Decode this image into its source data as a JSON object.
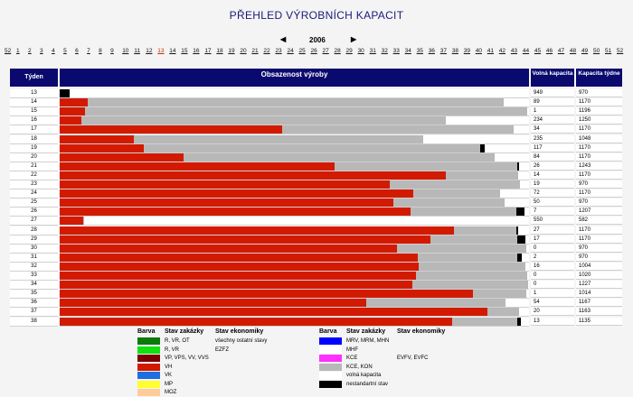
{
  "title": "PŘEHLED VÝROBNÍCH KAPACIT",
  "year_nav": {
    "year": "2006",
    "prev": "◀",
    "next": "▶"
  },
  "week_links": [
    "52",
    "1",
    "2",
    "3",
    "4",
    "5",
    "6",
    "7",
    "8",
    "9",
    "10",
    "11",
    "12",
    "13",
    "14",
    "15",
    "16",
    "17",
    "18",
    "19",
    "20",
    "21",
    "22",
    "23",
    "24",
    "25",
    "26",
    "27",
    "28",
    "29",
    "30",
    "31",
    "32",
    "33",
    "34",
    "35",
    "36",
    "37",
    "38",
    "39",
    "40",
    "41",
    "42",
    "43",
    "44",
    "45",
    "46",
    "47",
    "48",
    "49",
    "50",
    "51",
    "52"
  ],
  "current_week": "13",
  "headers": {
    "week": "Týden",
    "occupancy": "Obsazenost výroby",
    "free": "Volná kapacita",
    "capacity": "Kapacita týdne"
  },
  "colors": {
    "red": "#d21a00",
    "grey": "#b8b8b8",
    "black": "#000000",
    "header": "#0a0a6e"
  },
  "rows": [
    {
      "week": "13",
      "free": "949",
      "cap": "970",
      "red": 0,
      "grey": 0,
      "black": 2.2
    },
    {
      "week": "14",
      "free": "89",
      "cap": "1170",
      "red": 5.9,
      "grey": 88.7,
      "black": 0
    },
    {
      "week": "15",
      "free": "1",
      "cap": "1196",
      "red": 5.3,
      "grey": 94.3,
      "black": 0
    },
    {
      "week": "16",
      "free": "234",
      "cap": "1250",
      "red": 4.6,
      "grey": 77.6,
      "black": 0
    },
    {
      "week": "17",
      "free": "34",
      "cap": "1170",
      "red": 47.4,
      "grey": 49.4,
      "black": 0
    },
    {
      "week": "18",
      "free": "235",
      "cap": "1048",
      "red": 15.8,
      "grey": 61.7,
      "black": 0
    },
    {
      "week": "19",
      "free": "117",
      "cap": "1170",
      "red": 17.9,
      "grey": 71.7,
      "black": 0.9
    },
    {
      "week": "20",
      "free": "84",
      "cap": "1170",
      "red": 26.4,
      "grey": 66.2,
      "black": 0
    },
    {
      "week": "21",
      "free": "26",
      "cap": "1243",
      "red": 58.6,
      "grey": 38.9,
      "black": 0.3
    },
    {
      "week": "22",
      "free": "14",
      "cap": "1170",
      "red": 82.3,
      "grey": 15.4,
      "black": 0
    },
    {
      "week": "23",
      "free": "19",
      "cap": "970",
      "red": 70.4,
      "grey": 27.6,
      "black": 0
    },
    {
      "week": "24",
      "free": "72",
      "cap": "1170",
      "red": 75.3,
      "grey": 18.5,
      "black": 0
    },
    {
      "week": "25",
      "free": "50",
      "cap": "970",
      "red": 71.1,
      "grey": 23.7,
      "black": 0
    },
    {
      "week": "26",
      "free": "7",
      "cap": "1207",
      "red": 74.7,
      "grey": 22.6,
      "black": 1.7
    },
    {
      "week": "27",
      "free": "550",
      "cap": "582",
      "red": 5.0,
      "grey": 0.3,
      "black": 0
    },
    {
      "week": "28",
      "free": "27",
      "cap": "1170",
      "red": 84.0,
      "grey": 13.3,
      "black": 0.3
    },
    {
      "week": "29",
      "free": "17",
      "cap": "1170",
      "red": 79.0,
      "grey": 18.5,
      "black": 1.7
    },
    {
      "week": "30",
      "free": "0",
      "cap": "970",
      "red": 71.9,
      "grey": 27.6,
      "black": 0
    },
    {
      "week": "31",
      "free": "2",
      "cap": "970",
      "red": 76.3,
      "grey": 21.2,
      "black": 0.9
    },
    {
      "week": "32",
      "free": "16",
      "cap": "1004",
      "red": 76.5,
      "grey": 22.7,
      "black": 0
    },
    {
      "week": "33",
      "free": "0",
      "cap": "1020",
      "red": 75.9,
      "grey": 23.8,
      "black": 0
    },
    {
      "week": "34",
      "free": "0",
      "cap": "1227",
      "red": 75.1,
      "grey": 24.7,
      "black": 0
    },
    {
      "week": "35",
      "free": "1",
      "cap": "1014",
      "red": 88.1,
      "grey": 11.4,
      "black": 0
    },
    {
      "week": "36",
      "free": "54",
      "cap": "1167",
      "red": 65.3,
      "grey": 29.7,
      "black": 0
    },
    {
      "week": "37",
      "free": "20",
      "cap": "1163",
      "red": 91.1,
      "grey": 6.7,
      "black": 0
    },
    {
      "week": "38",
      "free": "13",
      "cap": "1135",
      "red": 83.6,
      "grey": 13.9,
      "black": 0.8
    }
  ],
  "legend": {
    "left": {
      "headers": [
        "Barva",
        "Stav zakázky",
        "Stav ekonomiky"
      ],
      "items": [
        {
          "color": "#0a7a0a",
          "state": "R, VR, OT",
          "econ": "všechny ostatní stavy"
        },
        {
          "color": "#10e010",
          "state": "R, VR",
          "econ": "EZFZ"
        },
        {
          "color": "#7a0000",
          "state": "VP, VPS, VV, VVS",
          "econ": ""
        },
        {
          "color": "#d21a00",
          "state": "VH",
          "econ": ""
        },
        {
          "color": "#1e6ee0",
          "state": "VK",
          "econ": ""
        },
        {
          "color": "#ffff30",
          "state": "MP",
          "econ": ""
        },
        {
          "color": "#ffcc99",
          "state": "MOZ",
          "econ": ""
        }
      ]
    },
    "right": {
      "headers": [
        "Barva",
        "Stav zakázky",
        "Stav ekonomiky"
      ],
      "items": [
        {
          "color": "#0000ff",
          "state": "MRV, MRM, MHN",
          "econ": ""
        },
        {
          "color": "#ffffff",
          "state": "MHF",
          "econ": ""
        },
        {
          "color": "#ff30ff",
          "state": "KCE",
          "econ": "EVFV, EVFC"
        },
        {
          "color": "#b8b8b8",
          "state": "KCE, KON",
          "econ": ""
        },
        {
          "color": "#ffffff",
          "state": "volná kapacita",
          "econ": ""
        },
        {
          "color": "#000000",
          "state": "nestandartní stav",
          "econ": ""
        }
      ]
    }
  }
}
